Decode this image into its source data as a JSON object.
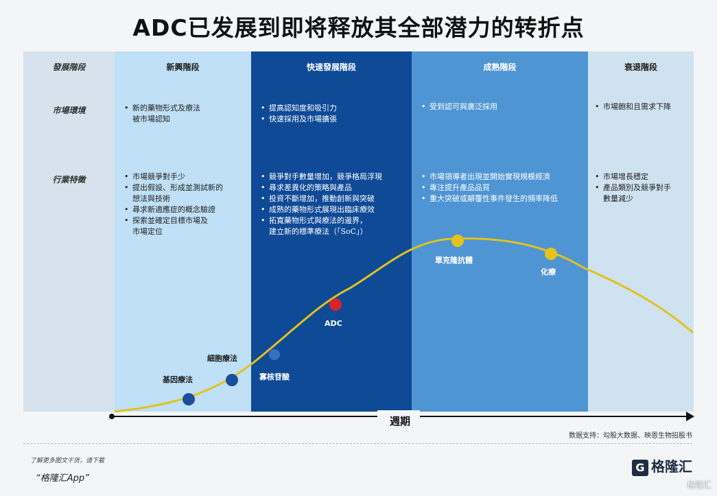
{
  "title": "ADC已发展到即将释放其全部潜力的转折点",
  "row_labels": {
    "header": "發展階段",
    "market": "市場環境",
    "industry": "行業特徵"
  },
  "stages": [
    {
      "name": "新興階段",
      "market": [
        "新的藥物形式及療法",
        "被市場認知"
      ],
      "industry": [
        "市場競爭對手少",
        "提出假設、形成並測試新的",
        "想法與技術",
        "尋求新適應症的概念驗證",
        "探索並確定目標市場及",
        "市場定位"
      ]
    },
    {
      "name": "快速發展階段",
      "market": [
        "提高認知度和吸引力",
        "快速採用及市場擴張"
      ],
      "industry": [
        "競爭對手數量增加，競爭格局浮現",
        "尋求差異化的策略與產品",
        "投資不斷增加，推動創新與突破",
        "成熟的藥物形式展現出臨床療效",
        "拓寬藥物形式與療法的邊界，",
        "建立新的標準療法（「SoC」）"
      ]
    },
    {
      "name": "成熟階段",
      "market": [
        "受到認可與廣泛採用"
      ],
      "industry": [
        "市場領導者出現並開始實現規模經濟",
        "專注提升產品品質",
        "重大突破或顛覆性事件發生的頻率降低"
      ]
    },
    {
      "name": "衰退階段",
      "market": [
        "市場飽和且需求下降"
      ],
      "industry": [
        "市場增長穩定",
        "產品類別及競爭對手",
        "數量減少"
      ]
    }
  ],
  "points": [
    {
      "label": "基因療法",
      "color": "#1a4f9c"
    },
    {
      "label": "細胞療法",
      "color": "#1a4f9c"
    },
    {
      "label": "寡核苷酸",
      "color": "#3a6fc0"
    },
    {
      "label": "ADC",
      "color": "#d9232a"
    },
    {
      "label": "單克隆抗體",
      "color": "#e6c21a"
    },
    {
      "label": "化療",
      "color": "#e6c21a"
    }
  ],
  "axis_label": "週期",
  "source": "数据支持：勾股大数据、映恩生物招股书",
  "footer_line1": "了解更多图文干货，请下载",
  "footer_line2": "“格隆汇App”",
  "logo": "格隆汇",
  "watermark": "格隆汇",
  "colors": {
    "stage1": "#bfe0f6",
    "stage2": "#0e4a96",
    "stage3": "#4f95d3",
    "stage4": "#cfe2f0",
    "curve": "#e2c21c"
  }
}
